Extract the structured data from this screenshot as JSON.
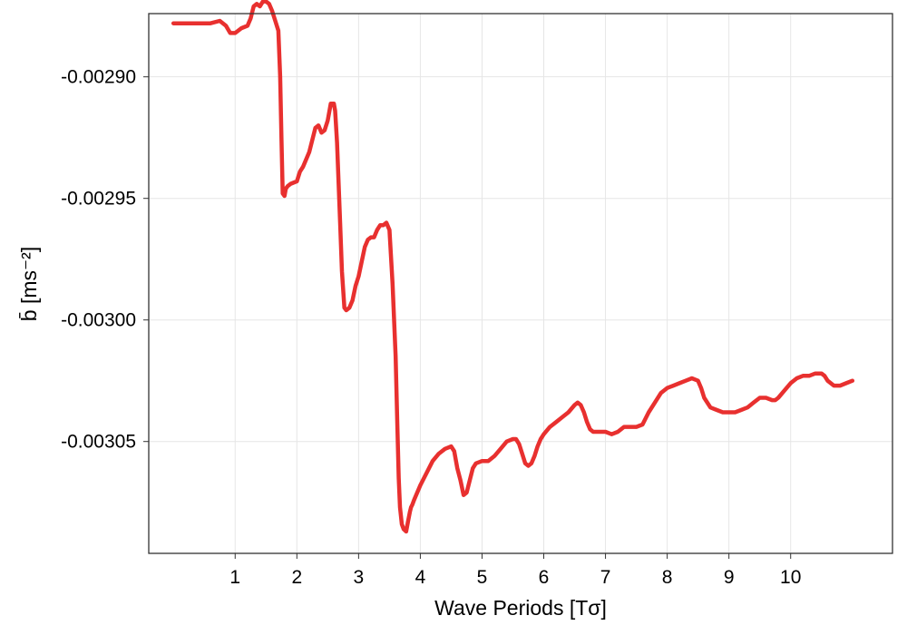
{
  "chart_data": {
    "type": "line",
    "xlabel": "Wave Periods [Tσ]",
    "ylabel": "b̄ [ms⁻²]",
    "xlim": [
      -0.4,
      11.65
    ],
    "ylim": [
      -0.003096,
      -0.002874
    ],
    "xticks": [
      1,
      2,
      3,
      4,
      5,
      6,
      7,
      8,
      9,
      10
    ],
    "xtick_labels": [
      "1",
      "2",
      "3",
      "4",
      "5",
      "6",
      "7",
      "8",
      "9",
      "10"
    ],
    "yticks": [
      -0.0029,
      -0.00295,
      -0.003,
      -0.00305
    ],
    "ytick_labels": [
      "-0.00290",
      "-0.00295",
      "-0.00300",
      "-0.00305"
    ],
    "grid": true,
    "series": [
      {
        "color": "#e8302f",
        "x": [
          0.0,
          0.4,
          0.6,
          0.75,
          0.85,
          0.92,
          1.0,
          1.1,
          1.2,
          1.25,
          1.3,
          1.35,
          1.4,
          1.45,
          1.5,
          1.55,
          1.6,
          1.65,
          1.7,
          1.73,
          1.75,
          1.77,
          1.8,
          1.82,
          1.85,
          1.9,
          2.0,
          2.05,
          2.1,
          2.2,
          2.3,
          2.35,
          2.4,
          2.45,
          2.5,
          2.55,
          2.6,
          2.62,
          2.65,
          2.7,
          2.73,
          2.77,
          2.8,
          2.85,
          2.9,
          2.95,
          3.0,
          3.05,
          3.1,
          3.15,
          3.2,
          3.25,
          3.3,
          3.35,
          3.4,
          3.45,
          3.5,
          3.55,
          3.6,
          3.63,
          3.65,
          3.67,
          3.7,
          3.73,
          3.77,
          3.8,
          3.83,
          3.85,
          3.87,
          3.9,
          3.95,
          4.0,
          4.1,
          4.2,
          4.3,
          4.4,
          4.5,
          4.55,
          4.6,
          4.65,
          4.7,
          4.75,
          4.8,
          4.85,
          4.9,
          5.0,
          5.1,
          5.2,
          5.3,
          5.4,
          5.5,
          5.55,
          5.6,
          5.65,
          5.7,
          5.75,
          5.8,
          5.85,
          5.9,
          5.95,
          6.0,
          6.1,
          6.2,
          6.3,
          6.4,
          6.5,
          6.55,
          6.6,
          6.65,
          6.7,
          6.75,
          6.8,
          6.85,
          6.9,
          7.0,
          7.1,
          7.2,
          7.3,
          7.4,
          7.5,
          7.6,
          7.7,
          7.8,
          7.9,
          8.0,
          8.1,
          8.2,
          8.3,
          8.4,
          8.5,
          8.55,
          8.6,
          8.7,
          8.8,
          8.9,
          9.0,
          9.1,
          9.2,
          9.3,
          9.4,
          9.5,
          9.6,
          9.7,
          9.75,
          9.8,
          9.9,
          10.0,
          10.1,
          10.2,
          10.3,
          10.4,
          10.5,
          10.55,
          10.6,
          10.7,
          10.8,
          10.9,
          11.0
        ],
        "y": [
          -0.002878,
          -0.002878,
          -0.002878,
          -0.002877,
          -0.002879,
          -0.002882,
          -0.002882,
          -0.00288,
          -0.002879,
          -0.002876,
          -0.002871,
          -0.00287,
          -0.002871,
          -0.002869,
          -0.002869,
          -0.00287,
          -0.002873,
          -0.002877,
          -0.002881,
          -0.0029,
          -0.002925,
          -0.002948,
          -0.002949,
          -0.002946,
          -0.002945,
          -0.002944,
          -0.002943,
          -0.002939,
          -0.002937,
          -0.002931,
          -0.002921,
          -0.00292,
          -0.002923,
          -0.002922,
          -0.002918,
          -0.002911,
          -0.002911,
          -0.002914,
          -0.002927,
          -0.00296,
          -0.00298,
          -0.002995,
          -0.002996,
          -0.002995,
          -0.002992,
          -0.002986,
          -0.002982,
          -0.002976,
          -0.00297,
          -0.002967,
          -0.002966,
          -0.002966,
          -0.002963,
          -0.002961,
          -0.002961,
          -0.00296,
          -0.002963,
          -0.002985,
          -0.003015,
          -0.003045,
          -0.003065,
          -0.003077,
          -0.003084,
          -0.003086,
          -0.003087,
          -0.003083,
          -0.003079,
          -0.003077,
          -0.003076,
          -0.003074,
          -0.003071,
          -0.003068,
          -0.003063,
          -0.003058,
          -0.003055,
          -0.003053,
          -0.003052,
          -0.003054,
          -0.003061,
          -0.003066,
          -0.003072,
          -0.003071,
          -0.003066,
          -0.003061,
          -0.003059,
          -0.003058,
          -0.003058,
          -0.003056,
          -0.003053,
          -0.00305,
          -0.003049,
          -0.003049,
          -0.003051,
          -0.003055,
          -0.003059,
          -0.00306,
          -0.003059,
          -0.003056,
          -0.003052,
          -0.003049,
          -0.003047,
          -0.003044,
          -0.003042,
          -0.00304,
          -0.003038,
          -0.003035,
          -0.003034,
          -0.003035,
          -0.003038,
          -0.003042,
          -0.003045,
          -0.003046,
          -0.003046,
          -0.003046,
          -0.003046,
          -0.003047,
          -0.003046,
          -0.003044,
          -0.003044,
          -0.003044,
          -0.003043,
          -0.003038,
          -0.003034,
          -0.00303,
          -0.003028,
          -0.003027,
          -0.003026,
          -0.003025,
          -0.003024,
          -0.003025,
          -0.003028,
          -0.003032,
          -0.003036,
          -0.003037,
          -0.003038,
          -0.003038,
          -0.003038,
          -0.003037,
          -0.003036,
          -0.003034,
          -0.003032,
          -0.003032,
          -0.003033,
          -0.003033,
          -0.003032,
          -0.003029,
          -0.003026,
          -0.003024,
          -0.003023,
          -0.003023,
          -0.003022,
          -0.003022,
          -0.003023,
          -0.003025,
          -0.003027,
          -0.003027,
          -0.003026,
          -0.003025
        ]
      }
    ]
  }
}
